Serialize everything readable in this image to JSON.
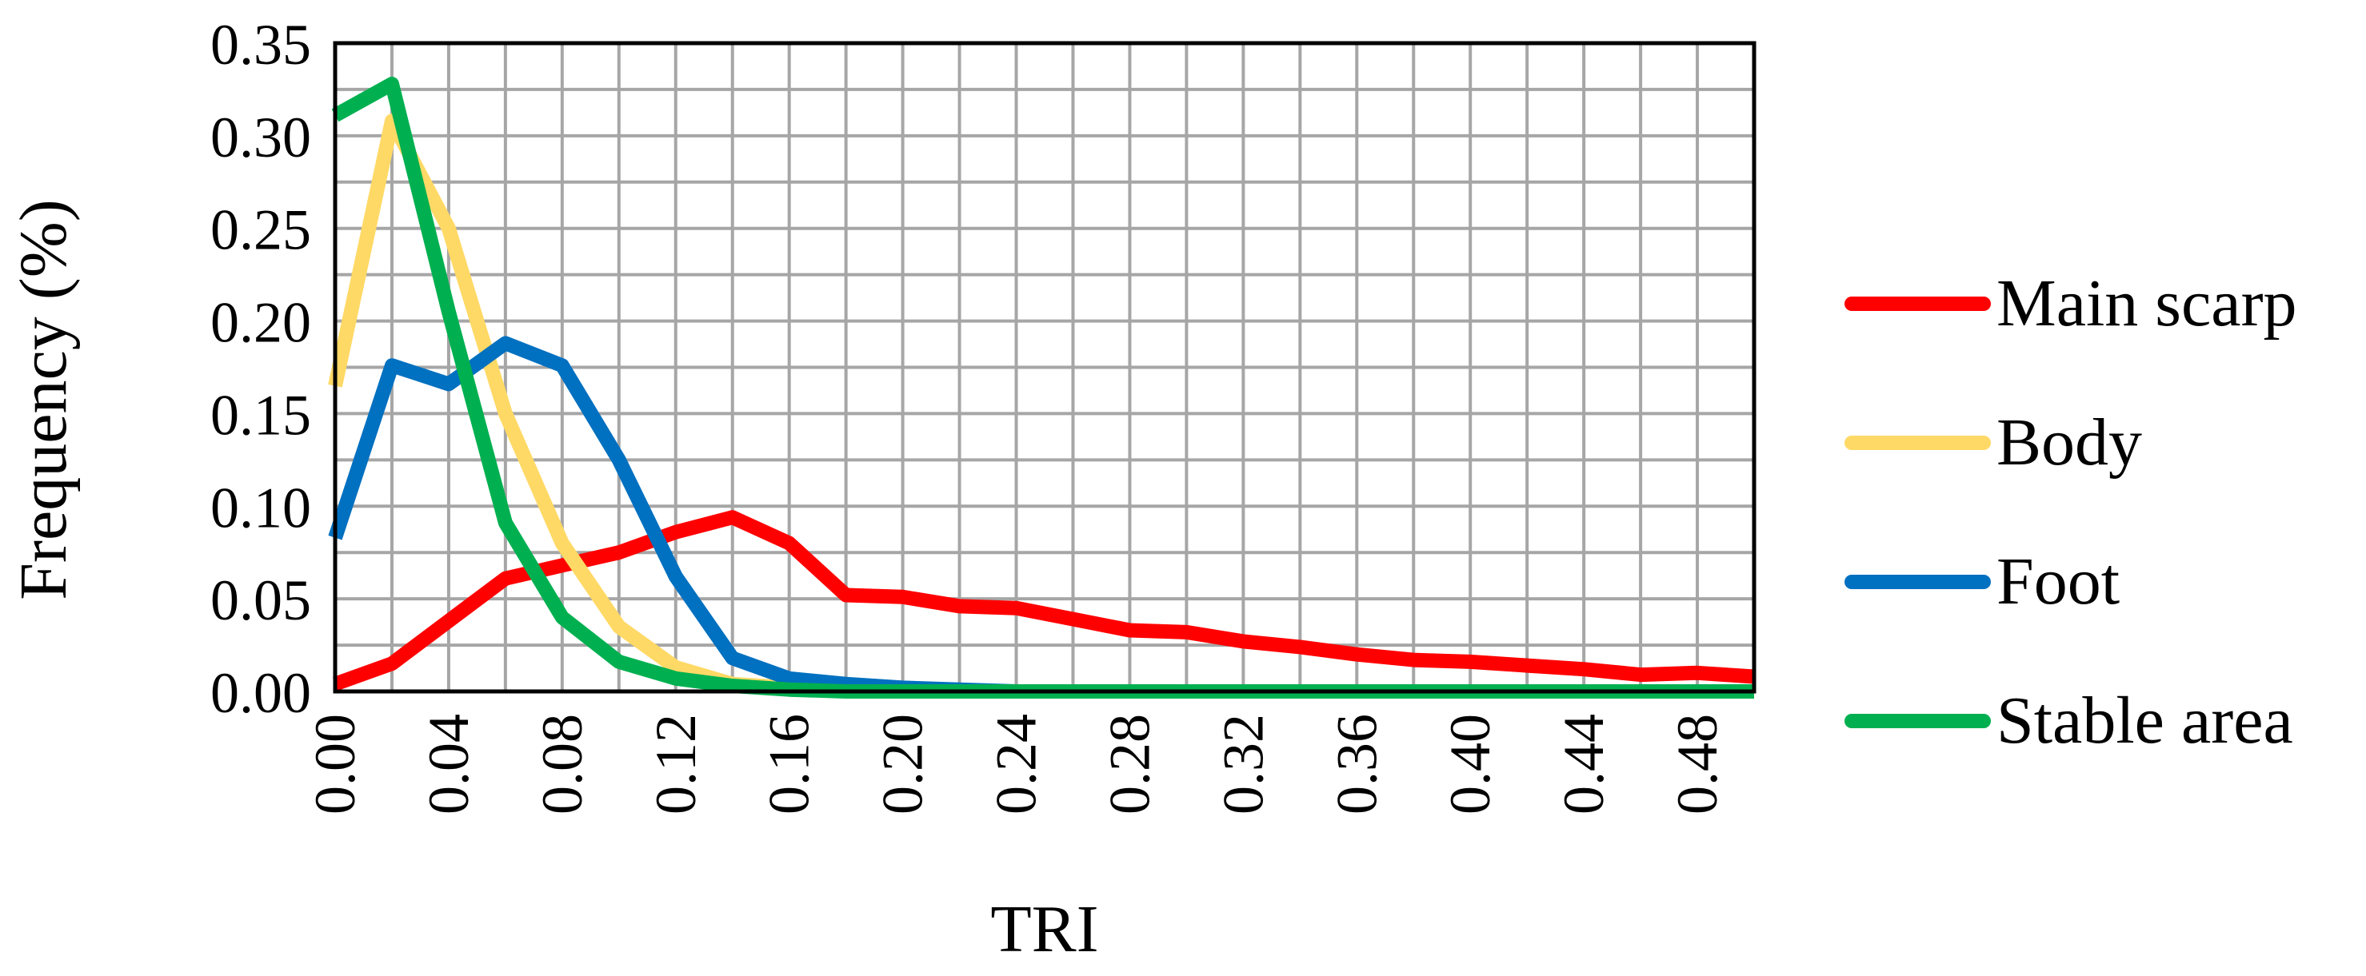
{
  "chart_data": {
    "type": "line",
    "xlabel": "TRI",
    "ylabel": "Frequency (%)",
    "xlim": [
      0,
      0.5
    ],
    "ylim": [
      0,
      0.35
    ],
    "x_tick_labels": [
      "0.00",
      "0.04",
      "0.08",
      "0.12",
      "0.16",
      "0.20",
      "0.24",
      "0.28",
      "0.32",
      "0.36",
      "0.40",
      "0.44",
      "0.48"
    ],
    "y_tick_labels": [
      "0.00",
      "0.05",
      "0.10",
      "0.15",
      "0.20",
      "0.25",
      "0.30",
      "0.35"
    ],
    "grid": true,
    "legend_position": "right",
    "x": [
      0.0,
      0.02,
      0.04,
      0.06,
      0.08,
      0.1,
      0.12,
      0.14,
      0.16,
      0.18,
      0.2,
      0.22,
      0.24,
      0.26,
      0.28,
      0.3,
      0.32,
      0.34,
      0.36,
      0.38,
      0.4,
      0.42,
      0.44,
      0.46,
      0.48,
      0.5
    ],
    "series": [
      {
        "name": "Main scarp",
        "color": "#ff0000",
        "values": [
          0.004,
          0.015,
          0.038,
          0.061,
          0.068,
          0.075,
          0.086,
          0.094,
          0.08,
          0.052,
          0.051,
          0.046,
          0.045,
          0.039,
          0.033,
          0.032,
          0.027,
          0.024,
          0.02,
          0.017,
          0.016,
          0.014,
          0.012,
          0.009,
          0.01,
          0.008
        ]
      },
      {
        "name": "Body",
        "color": "#ffd966",
        "values": [
          0.165,
          0.308,
          0.25,
          0.15,
          0.08,
          0.035,
          0.013,
          0.004,
          0.002,
          0.001,
          0.001,
          0.0,
          0.0,
          0.0,
          0.0,
          0.0,
          0.0,
          0.0,
          0.0,
          0.0,
          0.0,
          0.0,
          0.0,
          0.0,
          0.0,
          0.0
        ]
      },
      {
        "name": "Foot",
        "color": "#0070c0",
        "values": [
          0.083,
          0.176,
          0.166,
          0.188,
          0.176,
          0.125,
          0.062,
          0.018,
          0.007,
          0.004,
          0.002,
          0.001,
          0.0,
          0.0,
          0.0,
          0.0,
          0.0,
          0.0,
          0.0,
          0.0,
          0.0,
          0.0,
          0.0,
          0.0,
          0.0,
          0.0
        ]
      },
      {
        "name": "Stable area",
        "color": "#00b050",
        "values": [
          0.311,
          0.328,
          0.205,
          0.091,
          0.04,
          0.016,
          0.007,
          0.003,
          0.001,
          0.0,
          0.0,
          0.0,
          0.0,
          0.0,
          0.0,
          0.0,
          0.0,
          0.0,
          0.0,
          0.0,
          0.0,
          0.0,
          0.0,
          0.0,
          0.0,
          0.0
        ]
      }
    ]
  }
}
